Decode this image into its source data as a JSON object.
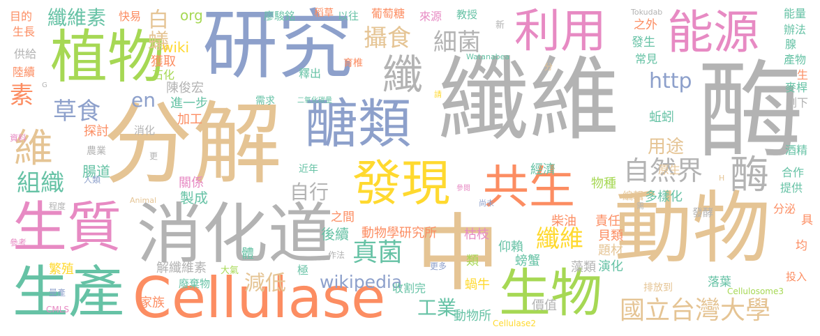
{
  "palette": {
    "green": "#a6d854",
    "blue": "#8da0cb",
    "gray": "#b3b3b3",
    "tan": "#e5c494",
    "pink": "#e78ac3",
    "orange": "#fc8d62",
    "yellow": "#ffd92f",
    "teal": "#66c2a5"
  },
  "words": [
    {
      "text": "纖維",
      "color": "gray"
    },
    {
      "text": "酶",
      "color": "gray"
    },
    {
      "text": "研究",
      "color": "blue"
    },
    {
      "text": "分解",
      "color": "tan"
    },
    {
      "text": "動物",
      "color": "tan"
    },
    {
      "text": "中",
      "color": "tan"
    },
    {
      "text": "Cellulase",
      "color": "orange"
    },
    {
      "text": "消化道",
      "color": "gray"
    },
    {
      "text": "生質",
      "color": "pink"
    },
    {
      "text": "生產",
      "color": "teal"
    },
    {
      "text": "植物",
      "color": "green"
    },
    {
      "text": "能源",
      "color": "pink"
    },
    {
      "text": "利用",
      "color": "pink"
    },
    {
      "text": "醣類",
      "color": "blue"
    },
    {
      "text": "發現",
      "color": "yellow"
    },
    {
      "text": "共生",
      "color": "orange"
    },
    {
      "text": "生物",
      "color": "green"
    },
    {
      "text": "纖",
      "color": "gray"
    },
    {
      "text": "酶",
      "color": "gray"
    },
    {
      "text": "國立台灣大學",
      "color": "tan"
    },
    {
      "text": "自然界",
      "color": "gray"
    },
    {
      "text": "纖維素",
      "color": "teal"
    },
    {
      "text": "攝食",
      "color": "tan"
    },
    {
      "text": "細菌",
      "color": "gray"
    },
    {
      "text": "草食",
      "color": "blue"
    },
    {
      "text": "組織",
      "color": "teal"
    },
    {
      "text": "真菌",
      "color": "teal"
    },
    {
      "text": "纖維",
      "color": "yellow"
    },
    {
      "text": "自行",
      "color": "gray"
    },
    {
      "text": "減低",
      "color": "tan"
    },
    {
      "text": "wikipedia",
      "color": "blue"
    },
    {
      "text": "工業",
      "color": "teal"
    },
    {
      "text": "用途",
      "color": "tan"
    },
    {
      "text": "http",
      "color": "blue"
    },
    {
      "text": "素",
      "color": "orange"
    },
    {
      "text": "維",
      "color": "tan"
    },
    {
      "text": "白蟻",
      "color": "tan"
    },
    {
      "text": "en",
      "color": "blue"
    },
    {
      "text": "org",
      "color": "green"
    },
    {
      "text": "wiki",
      "color": "yellow"
    },
    {
      "text": "獲取",
      "color": "orange"
    },
    {
      "text": "石化",
      "color": "green"
    },
    {
      "text": "陳俊宏",
      "color": "gray"
    },
    {
      "text": "進一步",
      "color": "teal"
    },
    {
      "text": "加工",
      "color": "orange"
    },
    {
      "text": "探討",
      "color": "orange"
    },
    {
      "text": "消化",
      "color": "gray"
    },
    {
      "text": "腸道",
      "color": "teal"
    },
    {
      "text": "關係",
      "color": "pink"
    },
    {
      "text": "製成",
      "color": "teal"
    },
    {
      "text": "體",
      "color": "teal"
    },
    {
      "text": "解纖維素",
      "color": "gray"
    },
    {
      "text": "廢棄物",
      "color": "teal"
    },
    {
      "text": "家族",
      "color": "orange"
    },
    {
      "text": "繁殖",
      "color": "yellow"
    },
    {
      "text": "大氣",
      "color": "green"
    },
    {
      "text": "極",
      "color": "teal"
    },
    {
      "text": "後續",
      "color": "teal"
    },
    {
      "text": "之間",
      "color": "orange"
    },
    {
      "text": "動物學研究所",
      "color": "orange"
    },
    {
      "text": "枯枝",
      "color": "pink"
    },
    {
      "text": "仰賴",
      "color": "teal"
    },
    {
      "text": "螃蟹",
      "color": "teal"
    },
    {
      "text": "類",
      "color": "green"
    },
    {
      "text": "蝸牛",
      "color": "yellow"
    },
    {
      "text": "收割完",
      "color": "teal"
    },
    {
      "text": "動物所",
      "color": "teal"
    },
    {
      "text": "貝類",
      "color": "orange"
    },
    {
      "text": "題材",
      "color": "tan"
    },
    {
      "text": "藻類",
      "color": "gray"
    },
    {
      "text": "演化",
      "color": "teal"
    },
    {
      "text": "價值",
      "color": "gray"
    },
    {
      "text": "柴油",
      "color": "orange"
    },
    {
      "text": "責任",
      "color": "orange"
    },
    {
      "text": "多樣化",
      "color": "teal"
    },
    {
      "text": "發酵",
      "color": "gray"
    },
    {
      "text": "編輯",
      "color": "tan"
    },
    {
      "text": "物種",
      "color": "green"
    },
    {
      "text": "經濟",
      "color": "teal"
    },
    {
      "text": "原生",
      "color": "tan"
    },
    {
      "text": "蚯蚓",
      "color": "teal"
    },
    {
      "text": "常見",
      "color": "teal"
    },
    {
      "text": "之外",
      "color": "orange"
    },
    {
      "text": "發生",
      "color": "teal"
    },
    {
      "text": "能量",
      "color": "teal"
    },
    {
      "text": "辦法",
      "color": "teal"
    },
    {
      "text": "腺",
      "color": "teal"
    },
    {
      "text": "產物",
      "color": "teal"
    },
    {
      "text": "生",
      "color": "orange"
    },
    {
      "text": "麥桿",
      "color": "teal"
    },
    {
      "text": "剩下",
      "color": "gray"
    },
    {
      "text": "酒精",
      "color": "teal"
    },
    {
      "text": "合作",
      "color": "teal"
    },
    {
      "text": "提供",
      "color": "teal"
    },
    {
      "text": "分泌",
      "color": "orange"
    },
    {
      "text": "具",
      "color": "orange"
    },
    {
      "text": "均",
      "color": "orange"
    },
    {
      "text": "投入",
      "color": "orange"
    },
    {
      "text": "落葉",
      "color": "teal"
    },
    {
      "text": "排放到",
      "color": "tan"
    },
    {
      "text": "Cellulosome3",
      "color": "green"
    },
    {
      "text": "Cellulase2",
      "color": "yellow"
    },
    {
      "text": "目的",
      "color": "orange"
    },
    {
      "text": "生長",
      "color": "orange"
    },
    {
      "text": "快易",
      "color": "orange"
    },
    {
      "text": "供給",
      "color": "gray"
    },
    {
      "text": "陸續",
      "color": "orange"
    },
    {
      "text": "G",
      "color": "gray"
    },
    {
      "text": "資料",
      "color": "pink"
    },
    {
      "text": "農業",
      "color": "gray"
    },
    {
      "text": "人類",
      "color": "blue"
    },
    {
      "text": "更",
      "color": "gray"
    },
    {
      "text": "程度",
      "color": "gray"
    },
    {
      "text": "參考",
      "color": "pink"
    },
    {
      "text": "量產",
      "color": "blue"
    },
    {
      "text": "CMLS",
      "color": "pink"
    },
    {
      "text": "Animal",
      "color": "tan"
    },
    {
      "text": "作法",
      "color": "gray"
    },
    {
      "text": "更多",
      "color": "blue"
    },
    {
      "text": "參閱",
      "color": "pink"
    },
    {
      "text": "尚未",
      "color": "blue"
    },
    {
      "text": "需",
      "color": "gray"
    },
    {
      "text": "H",
      "color": "tan"
    },
    {
      "text": "近年",
      "color": "teal"
    },
    {
      "text": "需求",
      "color": "teal"
    },
    {
      "text": "二氧化碳量",
      "color": "teal"
    },
    {
      "text": "請",
      "color": "yellow"
    },
    {
      "text": "分",
      "color": "tan"
    },
    {
      "text": "釋出",
      "color": "teal"
    },
    {
      "text": "育椎",
      "color": "orange"
    },
    {
      "text": "廖駿銘",
      "color": "teal"
    },
    {
      "text": "稻草",
      "color": "orange"
    },
    {
      "text": "葡萄糖",
      "color": "orange"
    },
    {
      "text": "以往",
      "color": "teal"
    },
    {
      "text": "來源",
      "color": "pink"
    },
    {
      "text": "教授",
      "color": "teal"
    },
    {
      "text": "新",
      "color": "gray"
    },
    {
      "text": "Tokudab",
      "color": "gray"
    },
    {
      "text": "Watanabea",
      "color": "teal"
    }
  ]
}
